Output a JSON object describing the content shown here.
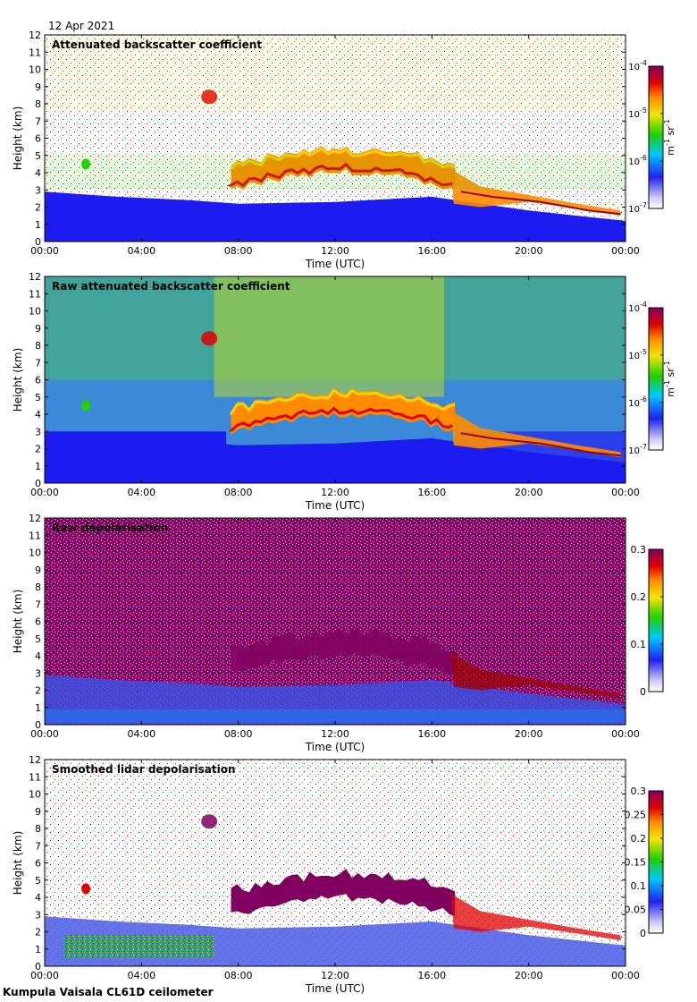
{
  "date_label": "12 Apr 2021",
  "footer_label": "Kumpula Vaisala CL61D ceilometer",
  "colors": {
    "white": "#ffffff",
    "lavender": "#d8d8f4",
    "blue": "#1c1cf0",
    "cyan": "#00d8ff",
    "green": "#26d000",
    "yellow": "#f0e000",
    "orange": "#ff8c00",
    "red": "#e00000",
    "darkred": "#9a0000",
    "purple": "#8c006c",
    "plum": "#800060"
  },
  "chart_data": [
    {
      "type": "heatmap",
      "title": "Attenuated backscatter coefficient",
      "xlabel": "Time (UTC)",
      "ylabel": "Height (km)",
      "x_ticks": [
        "00:00",
        "04:00",
        "08:00",
        "12:00",
        "16:00",
        "20:00",
        "00:00"
      ],
      "xlim": [
        0,
        24
      ],
      "y_ticks": [
        "0",
        "1",
        "2",
        "3",
        "4",
        "5",
        "6",
        "7",
        "8",
        "9",
        "10",
        "11",
        "12"
      ],
      "ylim": [
        0,
        12
      ],
      "colorbar": {
        "scale": "log",
        "range": [
          1e-07,
          0.0001
        ],
        "tick_bases": [
          "10",
          "10",
          "10",
          "10"
        ],
        "tick_exponents": [
          "-7",
          "-6",
          "-5",
          "-4"
        ],
        "unit_parts": [
          "m",
          "-1",
          " sr",
          "-1"
        ]
      }
    },
    {
      "type": "heatmap",
      "title": "Raw attenuated backscatter coefficient",
      "xlabel": "Time (UTC)",
      "ylabel": "Height (km)",
      "x_ticks": [
        "00:00",
        "04:00",
        "08:00",
        "12:00",
        "16:00",
        "20:00",
        "00:00"
      ],
      "xlim": [
        0,
        24
      ],
      "y_ticks": [
        "0",
        "1",
        "2",
        "3",
        "4",
        "5",
        "6",
        "7",
        "8",
        "9",
        "10",
        "11",
        "12"
      ],
      "ylim": [
        0,
        12
      ],
      "colorbar": {
        "scale": "log",
        "range": [
          1e-07,
          0.0001
        ],
        "tick_bases": [
          "10",
          "10",
          "10",
          "10"
        ],
        "tick_exponents": [
          "-7",
          "-6",
          "-5",
          "-4"
        ],
        "unit_parts": [
          "m",
          "-1",
          " sr",
          "-1"
        ]
      }
    },
    {
      "type": "heatmap",
      "title": "Raw depolarisation",
      "xlabel": "Time (UTC)",
      "ylabel": "Height (km)",
      "x_ticks": [
        "00:00",
        "04:00",
        "08:00",
        "12:00",
        "16:00",
        "20:00",
        "00:00"
      ],
      "xlim": [
        0,
        24
      ],
      "y_ticks": [
        "0",
        "1",
        "2",
        "3",
        "4",
        "5",
        "6",
        "7",
        "8",
        "9",
        "10",
        "11",
        "12"
      ],
      "ylim": [
        0,
        12
      ],
      "colorbar": {
        "scale": "linear",
        "range": [
          0,
          0.3
        ],
        "tick_labels": [
          "0",
          "0.1",
          "0.2",
          "0.3"
        ],
        "tick_values": [
          0,
          0.1,
          0.2,
          0.3
        ]
      }
    },
    {
      "type": "heatmap",
      "title": "Smoothed lidar depolarisation",
      "xlabel": "Time (UTC)",
      "ylabel": "Height (km)",
      "x_ticks": [
        "00:00",
        "04:00",
        "08:00",
        "12:00",
        "16:00",
        "20:00",
        "00:00"
      ],
      "xlim": [
        0,
        24
      ],
      "y_ticks": [
        "0",
        "1",
        "2",
        "3",
        "4",
        "5",
        "6",
        "7",
        "8",
        "9",
        "10",
        "11",
        "12"
      ],
      "ylim": [
        0,
        12
      ],
      "colorbar": {
        "scale": "linear",
        "range": [
          0,
          0.3
        ],
        "tick_labels": [
          "0",
          "0.05",
          "0.1",
          "0.15",
          "0.2",
          "0.25",
          "0.3"
        ],
        "tick_values": [
          0,
          0.05,
          0.1,
          0.15,
          0.2,
          0.25,
          0.3
        ]
      }
    }
  ]
}
